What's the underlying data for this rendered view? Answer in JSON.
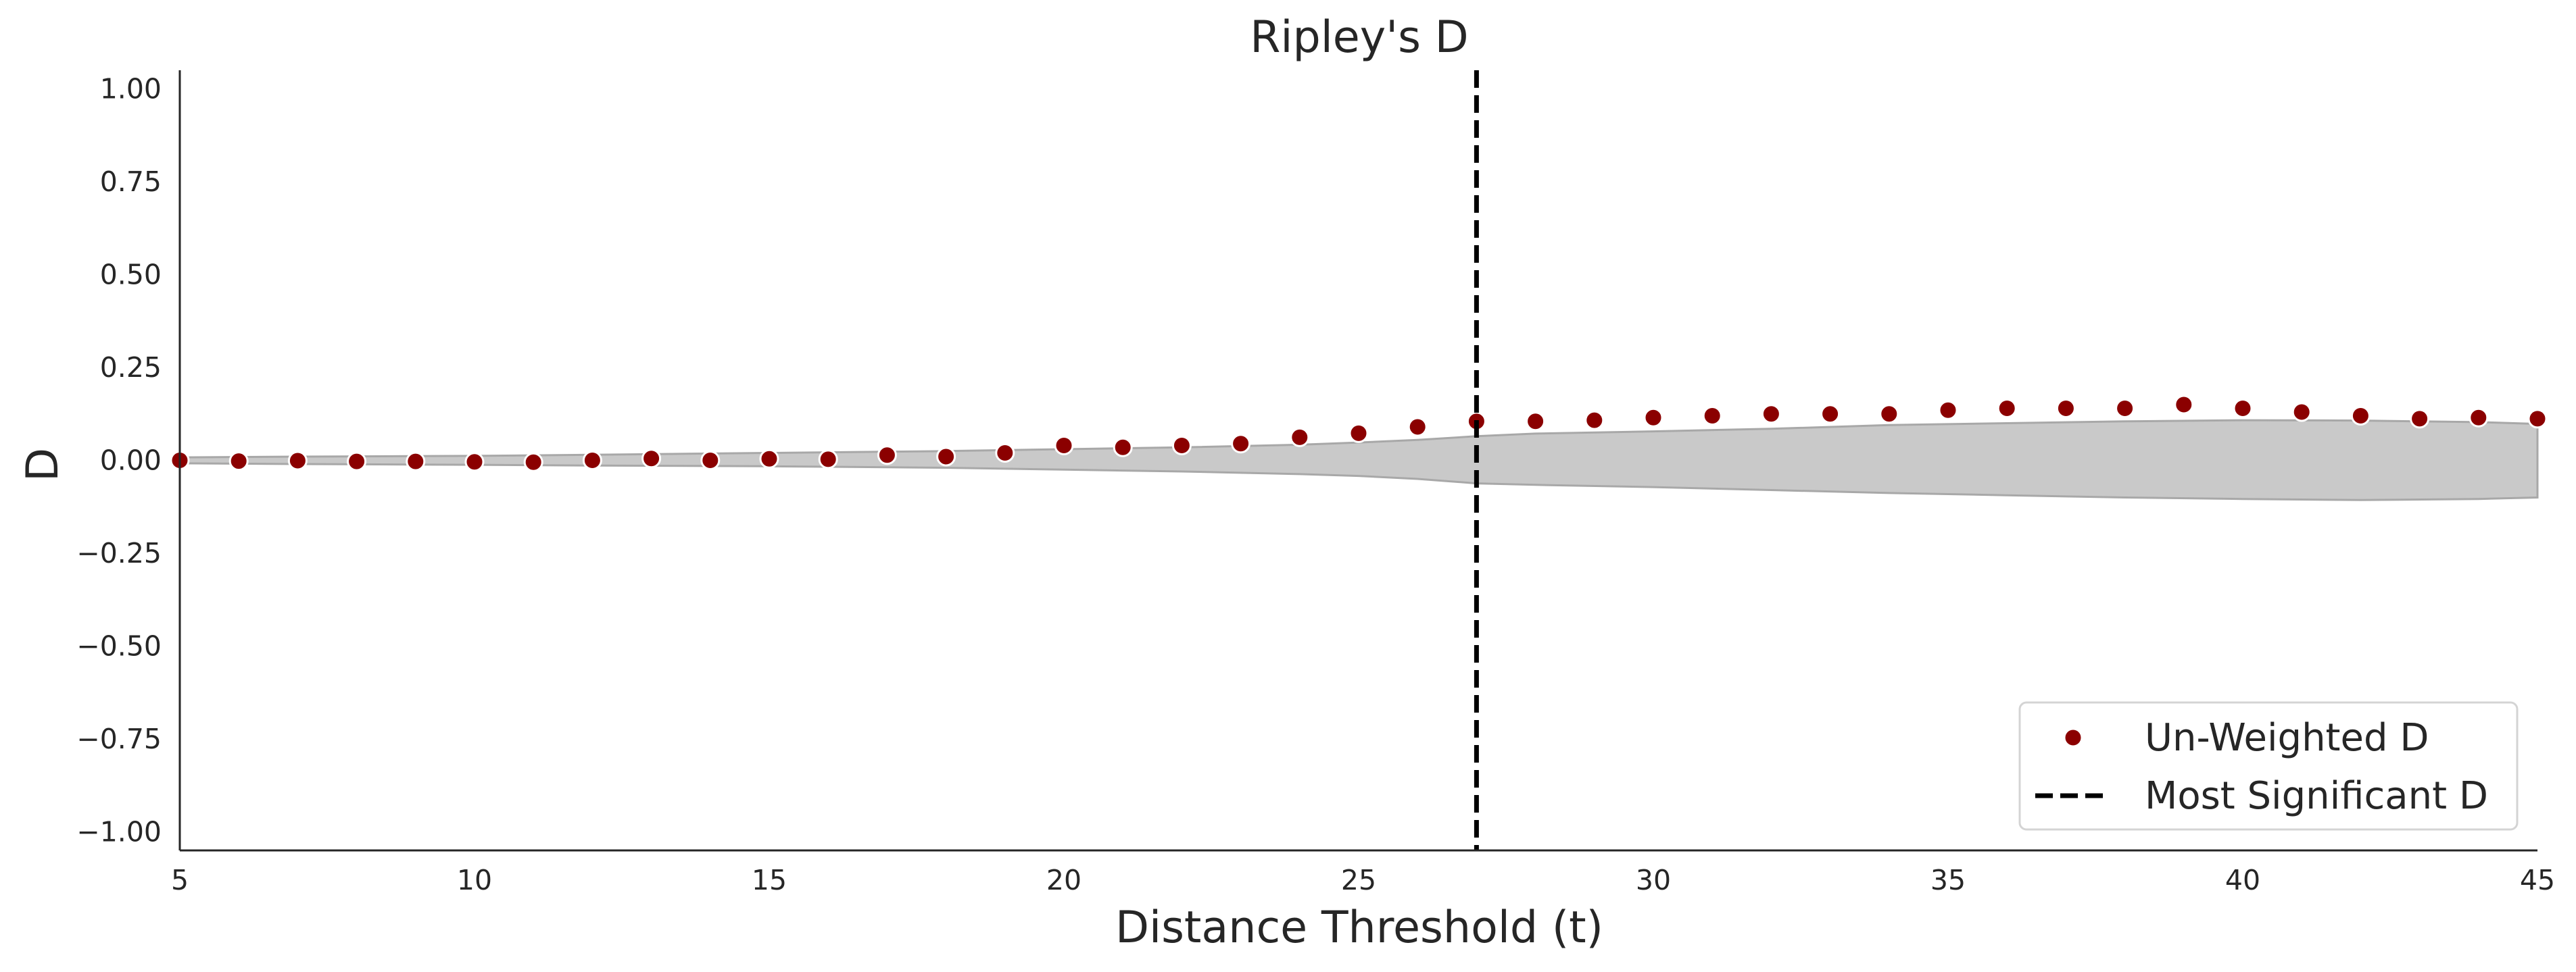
{
  "chart_data": {
    "type": "scatter",
    "title": "Ripley's D",
    "xlabel": "Distance Threshold (t)",
    "ylabel": "D",
    "xlim": [
      5,
      45
    ],
    "ylim": [
      -1.05,
      1.05
    ],
    "xticks": [
      5,
      10,
      15,
      20,
      25,
      30,
      35,
      40,
      45
    ],
    "xtick_labels": [
      "5",
      "10",
      "15",
      "20",
      "25",
      "30",
      "35",
      "40",
      "45"
    ],
    "yticks": [
      1.0,
      0.75,
      0.5,
      0.25,
      0.0,
      -0.25,
      -0.5,
      -0.75,
      -1.0
    ],
    "ytick_labels": [
      "1.00",
      "0.75",
      "0.50",
      "0.25",
      "0.00",
      "−0.25",
      "−0.50",
      "−0.75",
      "−1.00"
    ],
    "grid": false,
    "legend_position": "lower-right",
    "series": [
      {
        "name": "Un-Weighted D",
        "kind": "scatter",
        "color": "#8b0000",
        "x": [
          5,
          6,
          7,
          8,
          9,
          10,
          11,
          12,
          13,
          14,
          15,
          16,
          17,
          18,
          19,
          20,
          21,
          22,
          23,
          24,
          25,
          26,
          27,
          28,
          29,
          30,
          31,
          32,
          33,
          34,
          35,
          36,
          37,
          38,
          39,
          40,
          41,
          42,
          43,
          44,
          45
        ],
        "y": [
          0.0,
          -0.002,
          -0.001,
          -0.003,
          -0.003,
          -0.004,
          -0.005,
          0.0,
          0.005,
          0.0,
          0.004,
          0.003,
          0.014,
          0.01,
          0.02,
          0.04,
          0.035,
          0.04,
          0.045,
          0.062,
          0.073,
          0.09,
          0.105,
          0.105,
          0.108,
          0.115,
          0.12,
          0.125,
          0.125,
          0.125,
          0.135,
          0.14,
          0.14,
          0.14,
          0.15,
          0.14,
          0.13,
          0.12,
          0.112,
          0.115,
          0.112
        ]
      },
      {
        "name": "Most Significant D",
        "kind": "vline",
        "color": "#000000",
        "x": 27
      }
    ],
    "envelope": {
      "color": "#c9c9c9",
      "edge_color": "#a8a8a8",
      "x": [
        5,
        7,
        10,
        12,
        15,
        18,
        20,
        22,
        24,
        25,
        26,
        27,
        28,
        30,
        32,
        34,
        36,
        38,
        40,
        42,
        44,
        45
      ],
      "upper": [
        0.008,
        0.01,
        0.012,
        0.015,
        0.02,
        0.025,
        0.03,
        0.035,
        0.042,
        0.048,
        0.055,
        0.065,
        0.072,
        0.078,
        0.085,
        0.095,
        0.1,
        0.105,
        0.108,
        0.107,
        0.103,
        0.098
      ],
      "lower": [
        -0.008,
        -0.01,
        -0.012,
        -0.014,
        -0.016,
        -0.02,
        -0.025,
        -0.03,
        -0.037,
        -0.042,
        -0.05,
        -0.062,
        -0.066,
        -0.072,
        -0.08,
        -0.088,
        -0.094,
        -0.1,
        -0.104,
        -0.107,
        -0.104,
        -0.1
      ]
    }
  }
}
